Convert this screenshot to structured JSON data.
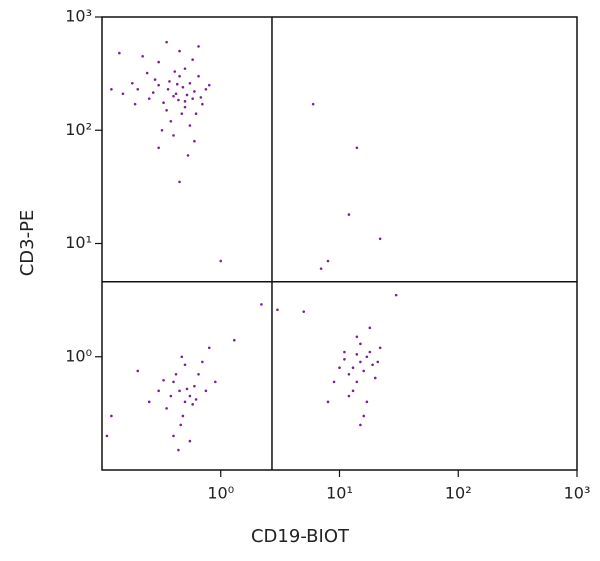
{
  "chart_data": {
    "type": "scatter",
    "x_label": "CD19-BIOT",
    "y_label": "CD3-PE",
    "x_scale": "log",
    "y_scale": "log",
    "xlim": [
      0.1,
      1000
    ],
    "ylim": [
      0.1,
      1000
    ],
    "xticks": [
      {
        "value": 1,
        "label": "10⁰"
      },
      {
        "value": 10,
        "label": "10¹"
      },
      {
        "value": 100,
        "label": "10²"
      },
      {
        "value": 1000,
        "label": "10³"
      }
    ],
    "yticks": [
      {
        "value": 1,
        "label": "10⁰"
      },
      {
        "value": 10,
        "label": "10¹"
      },
      {
        "value": 100,
        "label": "10²"
      },
      {
        "value": 1000,
        "label": "10³"
      }
    ],
    "gates": {
      "x": 2.7,
      "y": 4.6
    },
    "color": "#7a1f9e",
    "x": [
      0.4,
      0.3,
      0.5,
      0.6,
      0.35,
      0.45,
      0.25,
      0.55,
      0.7,
      0.2,
      0.38,
      0.5,
      0.62,
      0.28,
      0.42,
      0.33,
      0.48,
      0.58,
      0.15,
      0.18,
      0.65,
      0.75,
      0.3,
      0.45,
      0.22,
      0.55,
      0.4,
      0.6,
      0.32,
      0.5,
      0.37,
      0.44,
      0.52,
      0.27,
      0.68,
      0.41,
      0.36,
      0.47,
      0.8,
      0.12,
      0.58,
      0.24,
      0.19,
      0.53,
      0.45,
      0.35,
      0.65,
      0.14,
      0.3,
      0.43,
      0.45,
      0.5,
      0.4,
      0.55,
      0.35,
      0.6,
      0.48,
      0.42,
      0.52,
      0.38,
      0.58,
      0.46,
      0.5,
      0.3,
      0.65,
      0.4,
      0.55,
      0.33,
      0.62,
      0.7,
      0.8,
      0.25,
      0.47,
      0.44,
      0.9,
      0.12,
      0.11,
      0.2,
      1.3,
      0.75,
      15,
      13,
      17,
      12,
      18,
      14,
      16,
      11,
      19,
      15,
      13,
      20,
      10,
      14,
      17,
      12,
      22,
      9,
      16,
      15,
      11,
      21,
      18,
      8,
      14,
      6,
      14,
      12,
      22,
      8,
      7,
      1,
      3,
      5,
      30,
      2.2
    ],
    "y": [
      200,
      250,
      180,
      220,
      150,
      300,
      190,
      260,
      170,
      230,
      120,
      350,
      140,
      280,
      210,
      175,
      240,
      190,
      210,
      260,
      300,
      230,
      400,
      500,
      450,
      110,
      90,
      80,
      100,
      160,
      270,
      185,
      205,
      215,
      195,
      330,
      230,
      140,
      250,
      230,
      420,
      320,
      170,
      60,
      35,
      600,
      550,
      480,
      70,
      255,
      0.5,
      0.4,
      0.6,
      0.45,
      0.35,
      0.55,
      0.3,
      0.7,
      0.52,
      0.45,
      0.38,
      0.25,
      0.85,
      0.5,
      0.7,
      0.2,
      0.18,
      0.62,
      0.42,
      0.9,
      1.2,
      0.4,
      1.0,
      0.15,
      0.6,
      0.3,
      0.2,
      0.75,
      1.4,
      0.5,
      0.9,
      0.8,
      1.0,
      0.7,
      1.1,
      0.6,
      0.75,
      0.95,
      0.85,
      1.3,
      0.5,
      0.65,
      0.8,
      1.5,
      0.4,
      0.45,
      1.2,
      0.6,
      0.3,
      0.25,
      1.1,
      0.9,
      1.8,
      0.4,
      1.05,
      170,
      70,
      18,
      11,
      7,
      6,
      7,
      2.6,
      2.5,
      3.5,
      2.9
    ]
  }
}
